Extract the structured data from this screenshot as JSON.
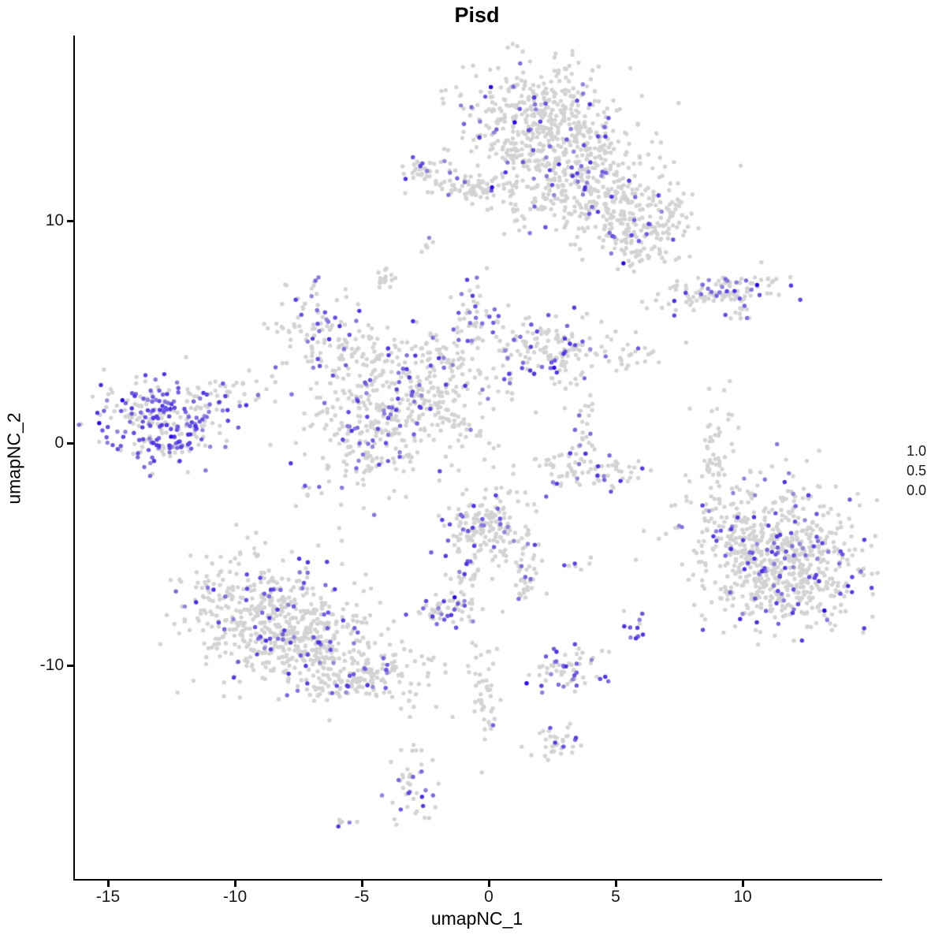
{
  "title": "Pisd",
  "axes": {
    "x_label": "umapNC_1",
    "y_label": "umapNC_2"
  },
  "legend": {
    "labels": [
      "1.0",
      "0.5",
      "0.0"
    ]
  },
  "colors": {
    "background": "#ffffff",
    "axis": "#000000",
    "tick_text": "#1a1a1a",
    "point_low": "#d3d3d3",
    "point_high": "#2100eb"
  },
  "chart_data": {
    "type": "scatter",
    "title": "Pisd",
    "xlabel": "umapNC_1",
    "ylabel": "umapNC_2",
    "xticks": [
      -15,
      -10,
      -5,
      0,
      5,
      10
    ],
    "yticks": [
      10,
      0,
      -10
    ],
    "xlim": [
      -16.4,
      15.5
    ],
    "ylim": [
      -19.6,
      18.3
    ],
    "grid": false,
    "legend_position": "right",
    "colorbar": {
      "ticks": [
        1.0,
        0.5,
        0.0
      ],
      "low_color": "#d3d3d3",
      "high_color": "#2100eb"
    },
    "description": "UMAP feature plot of Pisd expression; ~4600 cells in gaussian clusters; expr_frac = fraction of expressing (purple) cells",
    "clusters": [
      {
        "cx": 1.9,
        "cy": 15.0,
        "sx": 1.6,
        "sy": 1.2,
        "n": 300,
        "expr_frac": 0.06
      },
      {
        "cx": 2.5,
        "cy": 13.4,
        "sx": 1.5,
        "sy": 1.0,
        "n": 200,
        "expr_frac": 0.08
      },
      {
        "cx": 3.1,
        "cy": 11.8,
        "sx": 1.5,
        "sy": 0.9,
        "n": 180,
        "expr_frac": 0.08,
        "rot": -25
      },
      {
        "cx": 5.3,
        "cy": 10.7,
        "sx": 1.4,
        "sy": 1.0,
        "n": 170,
        "expr_frac": 0.09
      },
      {
        "cx": 5.7,
        "cy": 9.3,
        "sx": 1.0,
        "sy": 0.8,
        "n": 90,
        "expr_frac": 0.08
      },
      {
        "cx": -0.3,
        "cy": 11.4,
        "sx": 0.8,
        "sy": 0.35,
        "n": 40,
        "expr_frac": 0.05
      },
      {
        "cx": 7.0,
        "cy": 10.0,
        "sx": 0.4,
        "sy": 0.65,
        "n": 30,
        "expr_frac": 0.1
      },
      {
        "cx": -2.3,
        "cy": 12.1,
        "sx": 0.6,
        "sy": 0.4,
        "n": 45,
        "expr_frac": 0.1
      },
      {
        "cx": -0.9,
        "cy": 11.5,
        "sx": 0.9,
        "sy": 0.2,
        "n": 25,
        "expr_frac": 0.02
      },
      {
        "cx": -2.4,
        "cy": 8.8,
        "sx": 0.15,
        "sy": 0.25,
        "n": 6,
        "expr_frac": 0.3
      },
      {
        "cx": -4.1,
        "cy": 7.4,
        "sx": 0.25,
        "sy": 0.3,
        "n": 14,
        "expr_frac": 0.1
      },
      {
        "cx": -6.6,
        "cy": 5.2,
        "sx": 1.0,
        "sy": 0.95,
        "n": 100,
        "expr_frac": 0.3,
        "rot": 25
      },
      {
        "cx": -4.3,
        "cy": 3.8,
        "sx": 1.3,
        "sy": 0.8,
        "n": 80,
        "expr_frac": 0.15
      },
      {
        "cx": -0.6,
        "cy": 5.7,
        "sx": 0.6,
        "sy": 0.75,
        "n": 48,
        "expr_frac": 0.25
      },
      {
        "cx": -1.9,
        "cy": 4.0,
        "sx": 0.9,
        "sy": 0.65,
        "n": 50,
        "expr_frac": 0.12
      },
      {
        "cx": 2.3,
        "cy": 4.3,
        "sx": 1.3,
        "sy": 0.85,
        "n": 150,
        "expr_frac": 0.17
      },
      {
        "cx": 5.6,
        "cy": 4.1,
        "sx": 1.0,
        "sy": 0.5,
        "n": 30,
        "expr_frac": 0.12
      },
      {
        "cx": -4.8,
        "cy": 0.4,
        "sx": 1.4,
        "sy": 1.5,
        "n": 230,
        "expr_frac": 0.2
      },
      {
        "cx": -3.0,
        "cy": 1.8,
        "sx": 1.0,
        "sy": 1.0,
        "n": 120,
        "expr_frac": 0.15
      },
      {
        "cx": -1.4,
        "cy": 1.1,
        "sx": 1.3,
        "sy": 0.18,
        "n": 40,
        "expr_frac": 0.1,
        "rot": 35
      },
      {
        "cx": -12.9,
        "cy": 1.0,
        "sx": 1.25,
        "sy": 0.95,
        "n": 280,
        "expr_frac": 0.45
      },
      {
        "cx": -10.2,
        "cy": 2.2,
        "sx": 1.2,
        "sy": 0.45,
        "n": 30,
        "expr_frac": 0.25,
        "rot": -15
      },
      {
        "cx": 4.0,
        "cy": -1.2,
        "sx": 1.3,
        "sy": 0.5,
        "n": 85,
        "expr_frac": 0.13
      },
      {
        "cx": 3.7,
        "cy": 0.8,
        "sx": 0.25,
        "sy": 0.9,
        "n": 25,
        "expr_frac": 0.15
      },
      {
        "cx": 8.9,
        "cy": -0.1,
        "sx": 0.35,
        "sy": 1.3,
        "n": 50,
        "expr_frac": 0.0,
        "rot": 10
      },
      {
        "cx": 9.0,
        "cy": 6.8,
        "sx": 1.4,
        "sy": 0.35,
        "n": 115,
        "expr_frac": 0.2,
        "rot": -8
      },
      {
        "cx": 9.8,
        "cy": 5.7,
        "sx": 0.3,
        "sy": 0.3,
        "n": 12,
        "expr_frac": 0.3
      },
      {
        "cx": 11.3,
        "cy": -4.5,
        "sx": 1.7,
        "sy": 1.5,
        "n": 450,
        "expr_frac": 0.16
      },
      {
        "cx": 12.1,
        "cy": -6.3,
        "sx": 1.5,
        "sy": 1.0,
        "n": 270,
        "expr_frac": 0.14
      },
      {
        "cx": 9.5,
        "cy": -4.2,
        "sx": 0.7,
        "sy": 1.2,
        "n": 60,
        "expr_frac": 0.05
      },
      {
        "cx": -9.0,
        "cy": -7.6,
        "sx": 1.55,
        "sy": 1.35,
        "n": 400,
        "expr_frac": 0.13
      },
      {
        "cx": -7.0,
        "cy": -9.2,
        "sx": 1.35,
        "sy": 0.95,
        "n": 260,
        "expr_frac": 0.1,
        "rot": -15
      },
      {
        "cx": -4.8,
        "cy": -10.5,
        "sx": 1.2,
        "sy": 0.5,
        "n": 130,
        "expr_frac": 0.1,
        "rot": -18
      },
      {
        "cx": 0.0,
        "cy": -3.8,
        "sx": 0.85,
        "sy": 0.85,
        "n": 180,
        "expr_frac": 0.15
      },
      {
        "cx": 1.5,
        "cy": -6.0,
        "sx": 0.3,
        "sy": 0.6,
        "n": 35,
        "expr_frac": 0.1
      },
      {
        "cx": 3.5,
        "cy": -5.5,
        "sx": 0.3,
        "sy": 0.15,
        "n": 7,
        "expr_frac": 0.35
      },
      {
        "cx": -1.7,
        "cy": -7.6,
        "sx": 0.6,
        "sy": 0.45,
        "n": 50,
        "expr_frac": 0.35
      },
      {
        "cx": -1.1,
        "cy": -6.2,
        "sx": 0.25,
        "sy": 0.8,
        "n": 25,
        "expr_frac": 0.04
      },
      {
        "cx": 5.8,
        "cy": -8.1,
        "sx": 0.3,
        "sy": 0.35,
        "n": 11,
        "expr_frac": 0.8
      },
      {
        "cx": 3.0,
        "cy": -10.1,
        "sx": 0.8,
        "sy": 0.5,
        "n": 60,
        "expr_frac": 0.3
      },
      {
        "cx": -0.2,
        "cy": -11.0,
        "sx": 0.35,
        "sy": 1.6,
        "n": 45,
        "expr_frac": 0.05
      },
      {
        "cx": 2.7,
        "cy": -13.4,
        "sx": 0.6,
        "sy": 0.4,
        "n": 35,
        "expr_frac": 0.1
      },
      {
        "cx": -3.1,
        "cy": -15.4,
        "sx": 0.5,
        "sy": 1.0,
        "n": 45,
        "expr_frac": 0.3
      },
      {
        "cx": -5.6,
        "cy": -17.1,
        "sx": 0.25,
        "sy": 0.15,
        "n": 6,
        "expr_frac": 0.25
      },
      {
        "cx": -2.5,
        "cy": -11.3,
        "sx": 0.8,
        "sy": 0.6,
        "n": 18,
        "expr_frac": 0.05
      },
      {
        "cx": -0.6,
        "cy": 2.4,
        "sx": 1.2,
        "sy": 0.8,
        "n": 35,
        "expr_frac": 0.1
      }
    ]
  }
}
